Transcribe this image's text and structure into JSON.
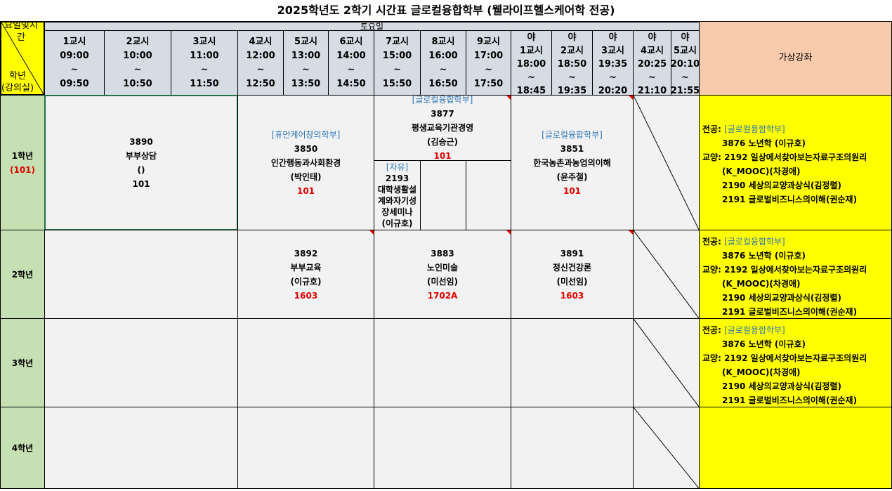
{
  "title": "2025학년도 2학기 시간표 글로컬융합학부 (웰라이프헬스케어학 전공)",
  "corner": {
    "top": "요일및시간",
    "bottom1": "학년",
    "bottom2": "(강의실)"
  },
  "day": "토요일",
  "virtual_header": "가상강좌",
  "periods": [
    {
      "name": "1교시",
      "start": "09:00",
      "sep": "~",
      "end": "09:50"
    },
    {
      "name": "2교시",
      "start": "10:00",
      "sep": "~",
      "end": "10:50"
    },
    {
      "name": "3교시",
      "start": "11:00",
      "sep": "~",
      "end": "11:50"
    },
    {
      "name": "4교시",
      "start": "12:00",
      "sep": "~",
      "end": "12:50"
    },
    {
      "name": "5교시",
      "start": "13:00",
      "sep": "~",
      "end": "13:50"
    },
    {
      "name": "6교시",
      "start": "14:00",
      "sep": "~",
      "end": "14:50"
    },
    {
      "name": "7교시",
      "start": "15:00",
      "sep": "~",
      "end": "15:50"
    },
    {
      "name": "8교시",
      "start": "16:00",
      "sep": "~",
      "end": "16:50"
    },
    {
      "name": "9교시",
      "start": "17:00",
      "sep": "~",
      "end": "17:50"
    }
  ],
  "night_periods": [
    {
      "pre": "야",
      "name": "1교시",
      "start": "18:00",
      "sep": "~",
      "end": "18:45"
    },
    {
      "pre": "야",
      "name": "2교시",
      "start": "18:50",
      "sep": "~",
      "end": "19:35"
    },
    {
      "pre": "야",
      "name": "3교시",
      "start": "19:35",
      "sep": "~",
      "end": "20:20"
    },
    {
      "pre": "야",
      "name": "4교시",
      "start": "20:25",
      "sep": "~",
      "end": "21:10"
    },
    {
      "pre": "야",
      "name": "5교시",
      "start": "20:10",
      "sep": "~",
      "end": "21:55"
    }
  ],
  "years": [
    {
      "label": "1학년",
      "room": "(101)"
    },
    {
      "label": "2학년"
    },
    {
      "label": "3학년"
    },
    {
      "label": "4학년"
    }
  ],
  "y1": {
    "c1": {
      "code": "3890",
      "name": "부부상담",
      "prof": "()",
      "room": "101"
    },
    "c2": {
      "dept": "[휴먼케어창의학부]",
      "code": "3850",
      "name": "인간행동과사회환경",
      "prof": "(박인태)",
      "room": "101"
    },
    "c3": {
      "dept": "[글로컬융합학부]",
      "code": "3877",
      "name": "평생교육기관경영",
      "prof": "(김승근)",
      "room": "101"
    },
    "c4": {
      "dept": "[자유]",
      "code": "2193",
      "name": "대학생활설계와자기성장세미나",
      "prof": "(이규호)"
    },
    "c5": {
      "dept": "[글로컬융합학부]",
      "code": "3851",
      "name": "한국농촌과농업의이해",
      "prof": "(윤주철)",
      "room": "101"
    }
  },
  "y2": {
    "c1": {
      "code": "3892",
      "name": "부부교육",
      "prof": "(이규호)",
      "room": "1603"
    },
    "c2": {
      "code": "3883",
      "name": "노인미술",
      "prof": "(미선임)",
      "room": "1702A"
    },
    "c3": {
      "code": "3891",
      "name": "정신건강론",
      "prof": "(미선임)",
      "room": "1603"
    }
  },
  "virtual": {
    "major_label": "전공:",
    "major_dept": "[글로컬융합학부]",
    "major_course": "3876 노년학 (이규호)",
    "gen_label": "교양:",
    "gen1": "2192 일상에서찾아보는자료구조의원리",
    "gen1b": "(K_MOOC)(차경애)",
    "gen2": "2190 세상의교양과상식(김정렬)",
    "gen3": "2191 글로벌비즈니스의이해(권순재)"
  }
}
